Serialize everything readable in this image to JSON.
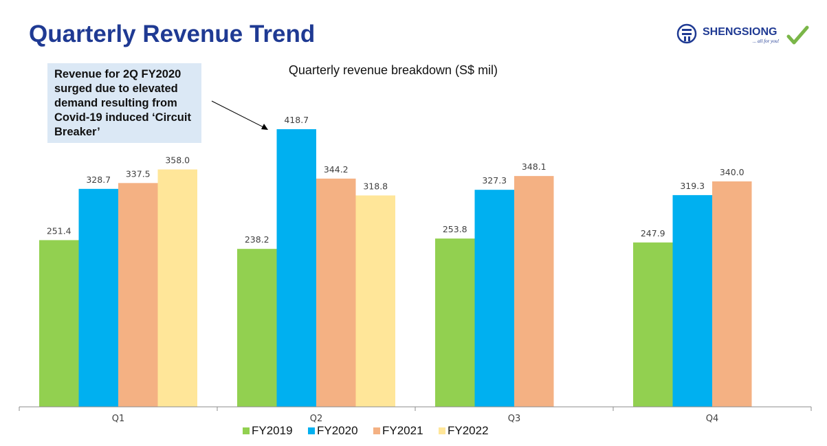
{
  "slide": {
    "title": "Quarterly Revenue Trend"
  },
  "logo": {
    "brand": "SHENGSIONG",
    "tagline": "... all for you!",
    "colors": {
      "navy": "#1f3a93",
      "check": "#7ab648"
    }
  },
  "annotation": {
    "text": "Revenue for 2Q FY2020 surged due to elevated demand resulting from Covid-19 induced ‘Circuit Breaker’"
  },
  "chart_data": {
    "type": "bar",
    "title": "Quarterly revenue breakdown (S$ mil)",
    "xlabel": "",
    "ylabel": "",
    "categories": [
      "Q1",
      "Q2",
      "Q3",
      "Q4"
    ],
    "ylim": [
      0,
      420
    ],
    "grid": false,
    "legend_position": "bottom",
    "series": [
      {
        "name": "FY2019",
        "color": "#92d050",
        "values": [
          251.4,
          238.2,
          253.8,
          247.9
        ],
        "labels": [
          "251.4",
          "238.2",
          "253.8",
          "247.9"
        ]
      },
      {
        "name": "FY2020",
        "color": "#00b0f0",
        "values": [
          328.7,
          418.7,
          327.3,
          319.3
        ],
        "labels": [
          "328.7",
          "418.7",
          "327.3",
          "319.3"
        ]
      },
      {
        "name": "FY2021",
        "color": "#f4b183",
        "values": [
          337.5,
          344.2,
          348.1,
          340.0
        ],
        "labels": [
          "337.5",
          "344.2",
          "348.1",
          "340.0"
        ]
      },
      {
        "name": "FY2022",
        "color": "#ffe699",
        "values": [
          358.0,
          318.8,
          null,
          null
        ],
        "labels": [
          "358.0",
          "318.8",
          null,
          null
        ]
      }
    ]
  }
}
